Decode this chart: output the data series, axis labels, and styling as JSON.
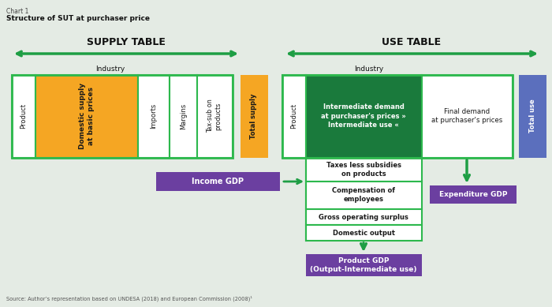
{
  "title_line1": "Chart 1",
  "title_line2": "Structure of SUT at purchaser price",
  "source": "Source: Author’s representation based on UNDESA (2018) and European Commission (2008)¹",
  "colors": {
    "green_dark": "#1a7a3c",
    "green_arrow": "#1e9e44",
    "green_border": "#2db84d",
    "orange": "#f5a623",
    "purple": "#6b3fa0",
    "blue_slate": "#5b6fbd",
    "white": "#ffffff",
    "black": "#1a1a1a",
    "light_bg": "#e4ebe4"
  }
}
